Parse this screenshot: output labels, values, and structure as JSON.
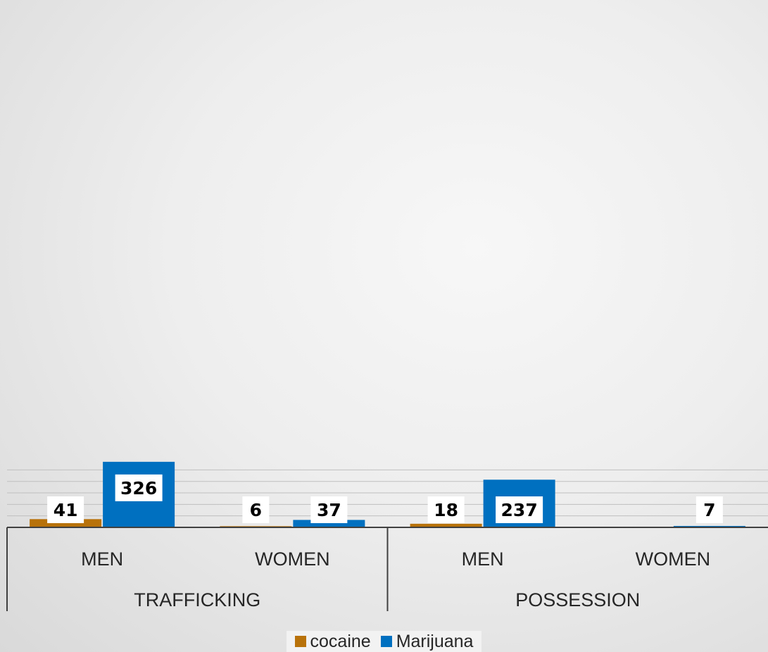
{
  "chart_data": {
    "type": "bar",
    "groups": [
      {
        "label": "TRAFFICKING",
        "categories": [
          "MEN",
          "WOMEN"
        ]
      },
      {
        "label": "POSSESSION",
        "categories": [
          "MEN",
          "WOMEN"
        ]
      }
    ],
    "categories": [
      "MEN",
      "WOMEN",
      "MEN",
      "WOMEN"
    ],
    "series": [
      {
        "name": "cocaine",
        "color": "#B8720A",
        "values": [
          41,
          6,
          18,
          null
        ]
      },
      {
        "name": "Marijuana",
        "color": "#0070C0",
        "values": [
          326,
          37,
          237,
          7
        ]
      }
    ],
    "ylim": [
      0,
      330
    ],
    "grid": true,
    "legend_position": "bottom"
  }
}
